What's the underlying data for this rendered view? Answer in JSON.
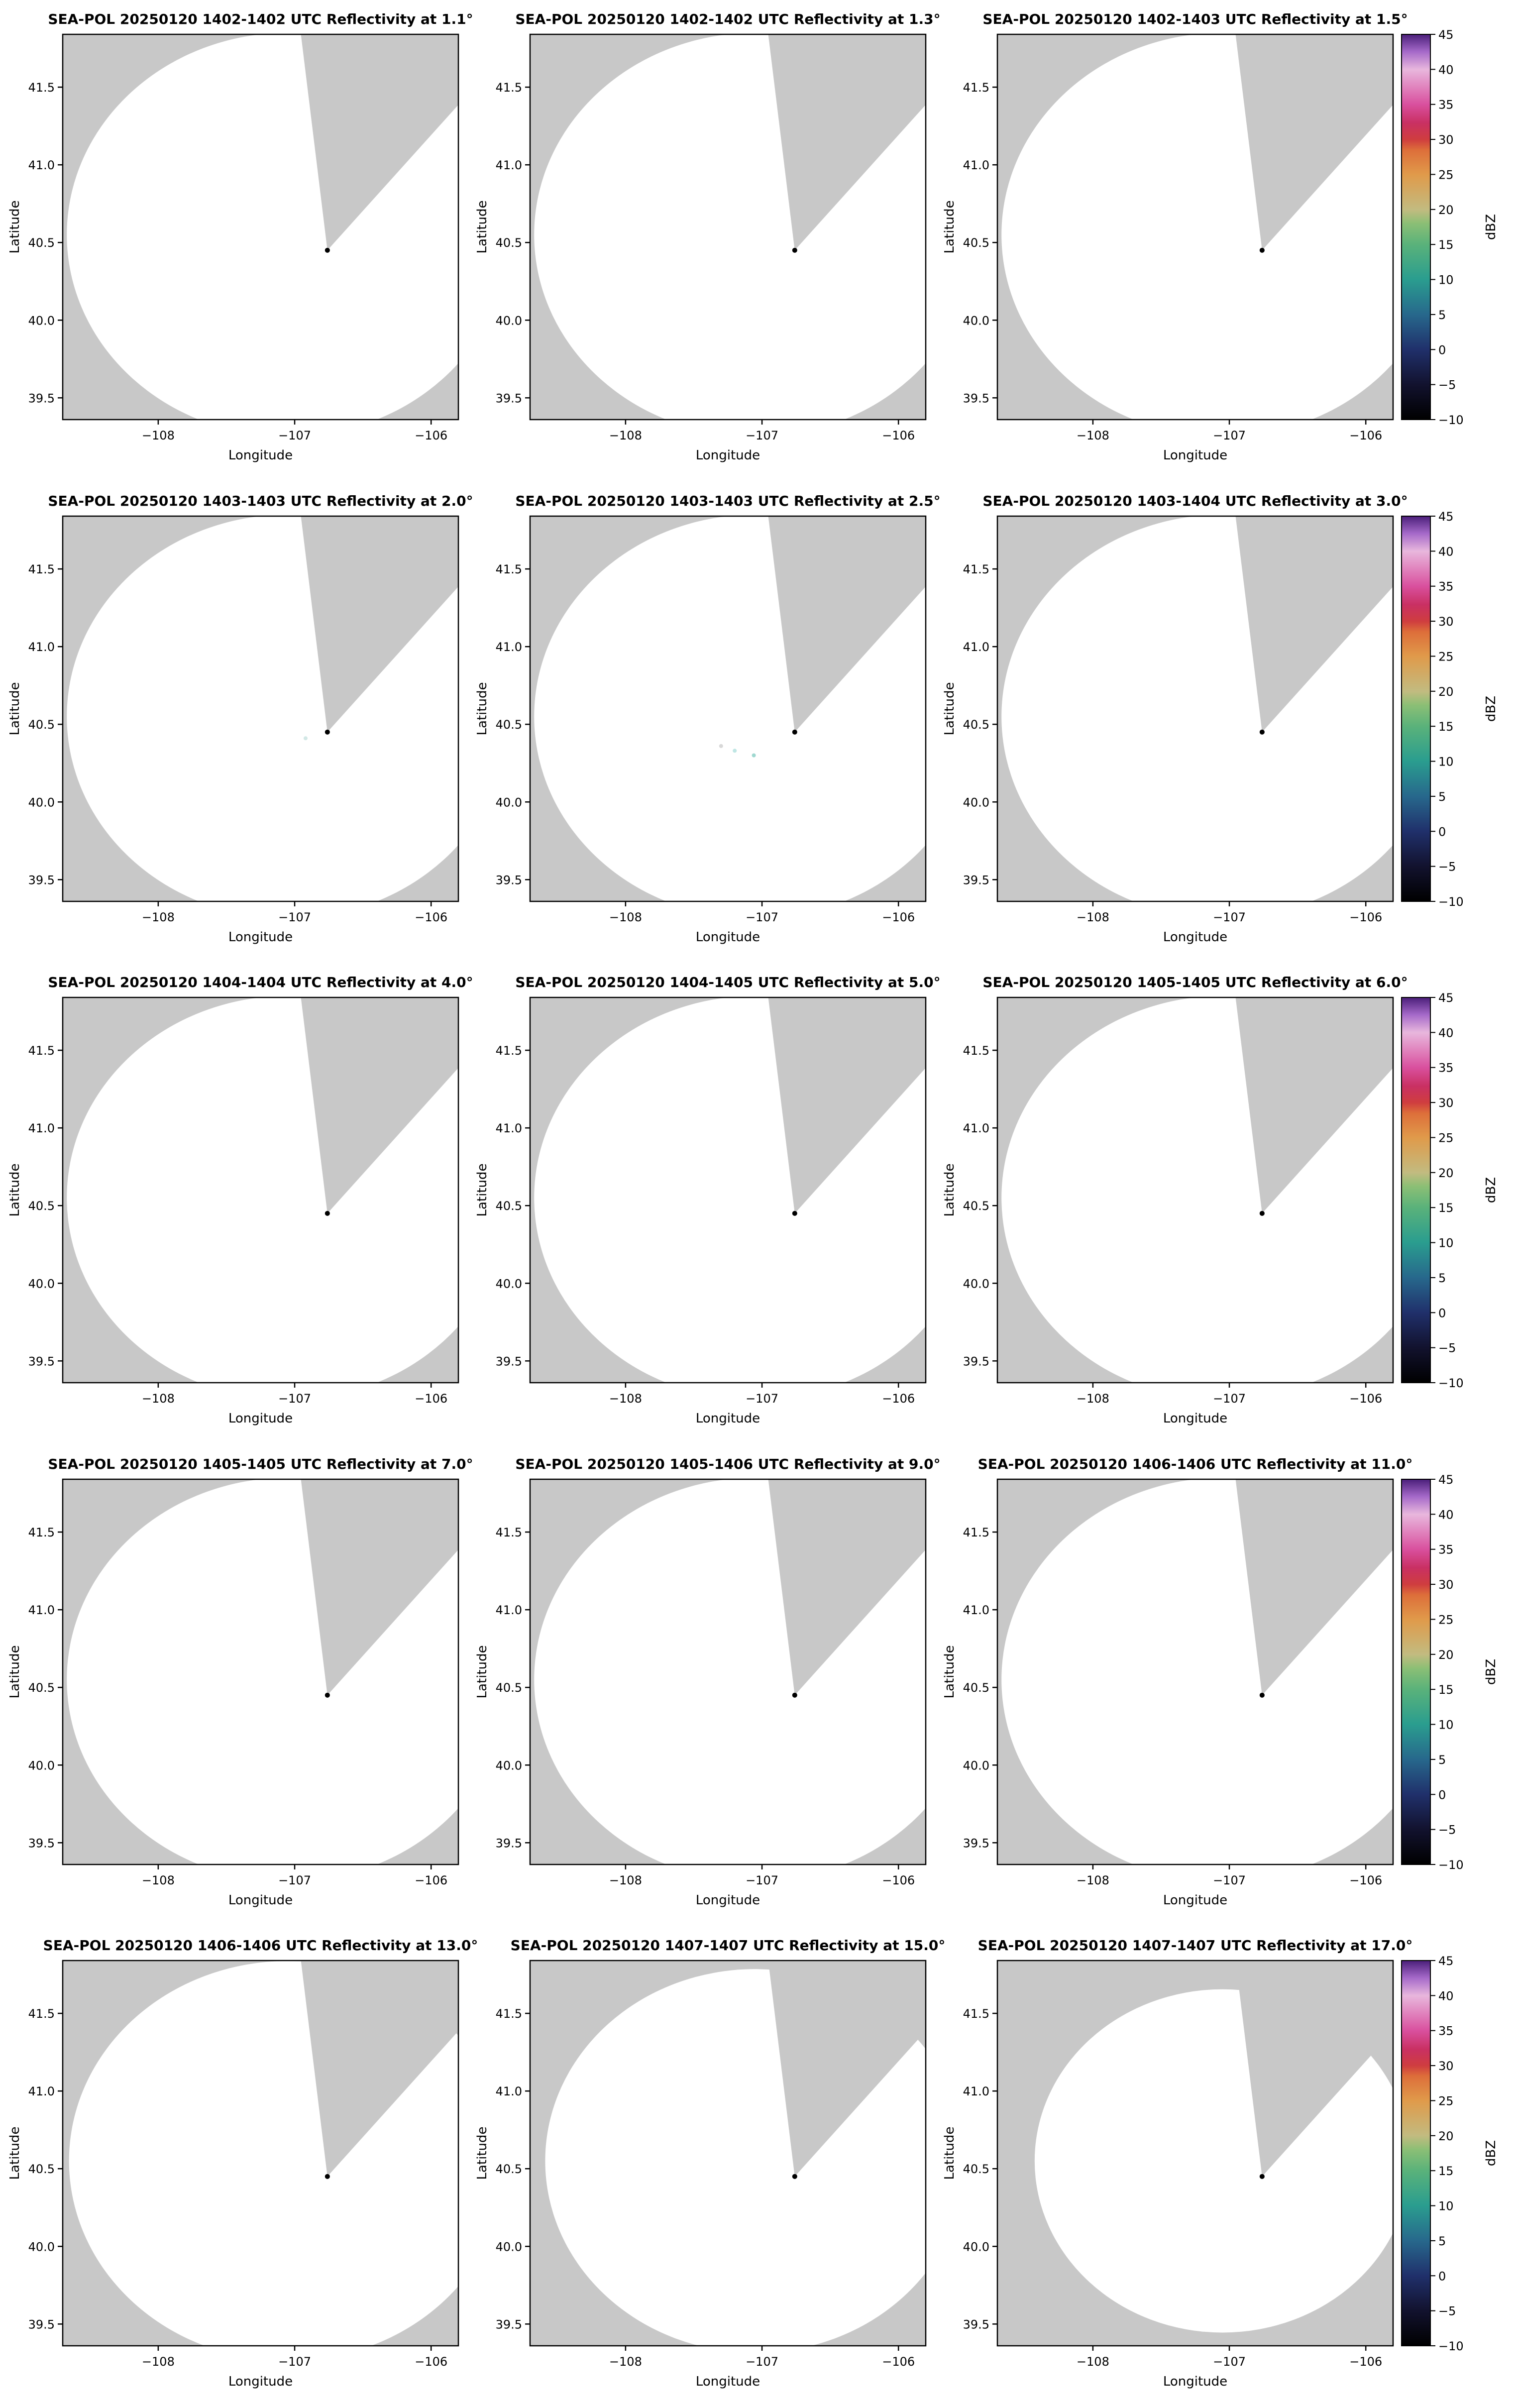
{
  "figure": {
    "background": "#ffffff",
    "plot_bg": "#c8c8c8",
    "scan_fill": "#ffffff",
    "frame_color": "#000000",
    "dot_color": "#000000"
  },
  "axes": {
    "xlabel": "Longitude",
    "ylabel": "Latitude",
    "x_range": [
      -108.7,
      -105.8
    ],
    "y_range": [
      39.36,
      41.84
    ],
    "x_ticks": [
      -108,
      -107,
      -106
    ],
    "x_tick_labels": [
      "−108",
      "−107",
      "−106"
    ],
    "y_ticks": [
      39.5,
      40.0,
      40.5,
      41.0,
      41.5
    ],
    "y_tick_labels": [
      "39.5",
      "40.0",
      "40.5",
      "41.0",
      "41.5"
    ]
  },
  "radar": {
    "lon": -106.76,
    "lat": 40.45
  },
  "scan": {
    "center_lon": -107.05,
    "center_lat": 40.55,
    "rx_deg": 1.62,
    "ry_deg": 1.3,
    "wedge_az_start": -7,
    "wedge_az_end": 42
  },
  "colorbar": {
    "label": "dBZ",
    "min": -10,
    "max": 45,
    "tick_values": [
      45,
      40,
      35,
      30,
      25,
      20,
      15,
      10,
      5,
      0,
      -5,
      -10
    ],
    "tick_labels": [
      "45",
      "40",
      "35",
      "30",
      "25",
      "20",
      "15",
      "10",
      "5",
      "0",
      "−5",
      "−10"
    ],
    "gradient": [
      {
        "o": 0.0,
        "c": "#000000"
      },
      {
        "o": 0.091,
        "c": "#12122e"
      },
      {
        "o": 0.182,
        "c": "#20306b"
      },
      {
        "o": 0.273,
        "c": "#27688c"
      },
      {
        "o": 0.364,
        "c": "#2a9d8f"
      },
      {
        "o": 0.455,
        "c": "#5ab27a"
      },
      {
        "o": 0.51,
        "c": "#8cbf75"
      },
      {
        "o": 0.545,
        "c": "#c2bb80"
      },
      {
        "o": 0.636,
        "c": "#e09a4a"
      },
      {
        "o": 0.7,
        "c": "#dd6e3a"
      },
      {
        "o": 0.727,
        "c": "#cf3d3f"
      },
      {
        "o": 0.77,
        "c": "#c93063"
      },
      {
        "o": 0.818,
        "c": "#d9509e"
      },
      {
        "o": 0.909,
        "c": "#e8b7dd"
      },
      {
        "o": 0.955,
        "c": "#a569c9"
      },
      {
        "o": 1.0,
        "c": "#4b1f7a"
      }
    ]
  },
  "panels": [
    {
      "title": "SEA-POL 20250120 1402-1402 UTC Reflectivity at 1.1°",
      "elevation": "1.1",
      "time_utc": "1402-1402",
      "scale": 1.0,
      "specks": []
    },
    {
      "title": "SEA-POL 20250120 1402-1402 UTC Reflectivity at 1.3°",
      "elevation": "1.3",
      "time_utc": "1402-1402",
      "scale": 1.0,
      "specks": []
    },
    {
      "title": "SEA-POL 20250120 1402-1403 UTC Reflectivity at 1.5°",
      "elevation": "1.5",
      "time_utc": "1402-1403",
      "scale": 1.0,
      "specks": []
    },
    {
      "title": "SEA-POL 20250120 1403-1403 UTC Reflectivity at 2.0°",
      "elevation": "2.0",
      "time_utc": "1403-1403",
      "scale": 1.0,
      "specks": [
        {
          "lon": -106.92,
          "lat": 40.41,
          "c": "#d2e8e6"
        }
      ]
    },
    {
      "title": "SEA-POL 20250120 1403-1403 UTC Reflectivity at 2.5°",
      "elevation": "2.5",
      "time_utc": "1403-1403",
      "scale": 1.0,
      "specks": [
        {
          "lon": -107.2,
          "lat": 40.33,
          "c": "#bfe6e4"
        },
        {
          "lon": -107.06,
          "lat": 40.3,
          "c": "#9fd8d0"
        },
        {
          "lon": -107.3,
          "lat": 40.36,
          "c": "#d8d8d8"
        }
      ]
    },
    {
      "title": "SEA-POL 20250120 1403-1404 UTC Reflectivity at 3.0°",
      "elevation": "3.0",
      "time_utc": "1403-1404",
      "scale": 1.0,
      "specks": []
    },
    {
      "title": "SEA-POL 20250120 1404-1404 UTC Reflectivity at 4.0°",
      "elevation": "4.0",
      "time_utc": "1404-1404",
      "scale": 1.0,
      "specks": []
    },
    {
      "title": "SEA-POL 20250120 1404-1405 UTC Reflectivity at 5.0°",
      "elevation": "5.0",
      "time_utc": "1404-1405",
      "scale": 1.0,
      "specks": []
    },
    {
      "title": "SEA-POL 20250120 1405-1405 UTC Reflectivity at 6.0°",
      "elevation": "6.0",
      "time_utc": "1405-1405",
      "scale": 1.0,
      "specks": []
    },
    {
      "title": "SEA-POL 20250120 1405-1405 UTC Reflectivity at 7.0°",
      "elevation": "7.0",
      "time_utc": "1405-1405",
      "scale": 1.0,
      "specks": []
    },
    {
      "title": "SEA-POL 20250120 1405-1406 UTC Reflectivity at 9.0°",
      "elevation": "9.0",
      "time_utc": "1405-1406",
      "scale": 1.0,
      "specks": []
    },
    {
      "title": "SEA-POL 20250120 1406-1406 UTC Reflectivity at 11.0°",
      "elevation": "11.0",
      "time_utc": "1406-1406",
      "scale": 1.0,
      "specks": []
    },
    {
      "title": "SEA-POL 20250120 1406-1406 UTC Reflectivity at 13.0°",
      "elevation": "13.0",
      "time_utc": "1406-1406",
      "scale": 0.99,
      "specks": []
    },
    {
      "title": "SEA-POL 20250120 1407-1407 UTC Reflectivity at 15.0°",
      "elevation": "15.0",
      "time_utc": "1407-1407",
      "scale": 0.95,
      "specks": []
    },
    {
      "title": "SEA-POL 20250120 1407-1407 UTC Reflectivity at 17.0°",
      "elevation": "17.0",
      "time_utc": "1407-1407",
      "scale": 0.85,
      "specks": []
    }
  ],
  "chart_data": {
    "type": "heatmap",
    "title": "SEA-POL radar reflectivity PPI scans, 20250120 1402-1407 UTC, 15 elevation angles",
    "xlabel": "Longitude",
    "ylabel": "Latitude",
    "xlim": [
      -108.7,
      -105.8
    ],
    "ylim": [
      39.36,
      41.84
    ],
    "x_ticks": [
      -108,
      -107,
      -106
    ],
    "y_ticks": [
      39.5,
      40.0,
      40.5,
      41.0,
      41.5
    ],
    "grid": false,
    "legend_position": "right-colorbar",
    "colorbar": {
      "label": "dBZ",
      "min": -10,
      "max": 45,
      "tick_step": 5
    },
    "radar_site": {
      "lon": -106.76,
      "lat": 40.45
    },
    "series": [
      {
        "name": "1.1°",
        "time_utc": "1402-1402",
        "echoes": "none (blank scan, all below -10 dBZ)"
      },
      {
        "name": "1.3°",
        "time_utc": "1402-1402",
        "echoes": "none (blank scan)"
      },
      {
        "name": "1.5°",
        "time_utc": "1402-1403",
        "echoes": "none (blank scan)"
      },
      {
        "name": "2.0°",
        "time_utc": "1403-1403",
        "echoes": "trace speckle near radar"
      },
      {
        "name": "2.5°",
        "time_utc": "1403-1403",
        "echoes": "trace speckle southwest of radar"
      },
      {
        "name": "3.0°",
        "time_utc": "1403-1404",
        "echoes": "none (blank scan)"
      },
      {
        "name": "4.0°",
        "time_utc": "1404-1404",
        "echoes": "none (blank scan)"
      },
      {
        "name": "5.0°",
        "time_utc": "1404-1405",
        "echoes": "none (blank scan)"
      },
      {
        "name": "6.0°",
        "time_utc": "1405-1405",
        "echoes": "none (blank scan)"
      },
      {
        "name": "7.0°",
        "time_utc": "1405-1405",
        "echoes": "none (blank scan)"
      },
      {
        "name": "9.0°",
        "time_utc": "1405-1406",
        "echoes": "none (blank scan)"
      },
      {
        "name": "11.0°",
        "time_utc": "1406-1406",
        "echoes": "none (blank scan)"
      },
      {
        "name": "13.0°",
        "time_utc": "1406-1406",
        "echoes": "none (blank scan)"
      },
      {
        "name": "15.0°",
        "time_utc": "1407-1407",
        "echoes": "none (blank scan, slightly reduced range)"
      },
      {
        "name": "17.0°",
        "time_utc": "1407-1407",
        "echoes": "none (blank scan, reduced range)"
      }
    ]
  }
}
